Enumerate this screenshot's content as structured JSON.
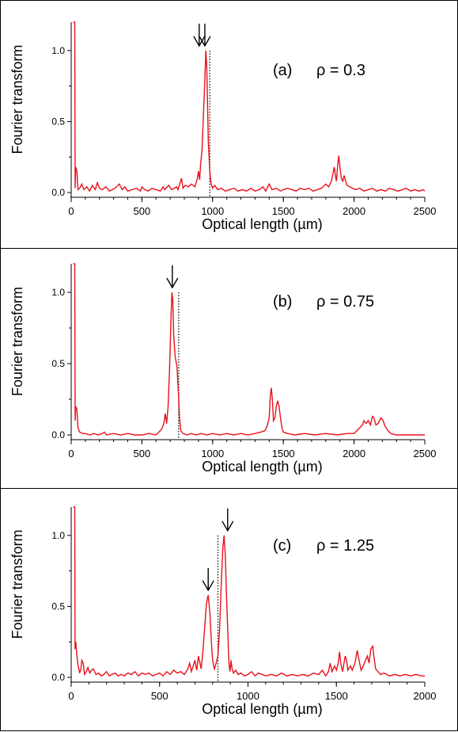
{
  "chart_data": [
    {
      "type": "line",
      "panel_label": "(a)",
      "annotation": "ρ = 0.3",
      "xlabel": "Optical length (µm)",
      "ylabel": "Fourier transform",
      "xlim": [
        0,
        2500
      ],
      "ylim": [
        0,
        1.2
      ],
      "xticks": [
        0,
        500,
        1000,
        1500,
        2000,
        2500
      ],
      "yticks": [
        "0.0",
        "0.5",
        "1.0"
      ],
      "color": "#e8111b",
      "dotted_line_x": 980,
      "arrows_x": [
        905,
        945
      ],
      "points": [
        [
          15,
          1.2
        ],
        [
          25,
          1.2
        ],
        [
          28,
          0.03
        ],
        [
          32,
          0.18
        ],
        [
          40,
          0.15
        ],
        [
          48,
          0.02
        ],
        [
          60,
          0.03
        ],
        [
          75,
          0.06
        ],
        [
          90,
          0.02
        ],
        [
          110,
          0.04
        ],
        [
          130,
          0.01
        ],
        [
          150,
          0.05
        ],
        [
          170,
          0.02
        ],
        [
          185,
          0.07
        ],
        [
          200,
          0.03
        ],
        [
          220,
          0.02
        ],
        [
          245,
          0.04
        ],
        [
          270,
          0.01
        ],
        [
          290,
          0.02
        ],
        [
          310,
          0.03
        ],
        [
          340,
          0.06
        ],
        [
          360,
          0.02
        ],
        [
          380,
          0.04
        ],
        [
          400,
          0.01
        ],
        [
          430,
          0.02
        ],
        [
          460,
          0.03
        ],
        [
          490,
          0.01
        ],
        [
          500,
          0.04
        ],
        [
          520,
          0.02
        ],
        [
          545,
          0.01
        ],
        [
          570,
          0.03
        ],
        [
          600,
          0.02
        ],
        [
          630,
          0.01
        ],
        [
          650,
          0.04
        ],
        [
          660,
          0.02
        ],
        [
          690,
          0.05
        ],
        [
          710,
          0.02
        ],
        [
          730,
          0.03
        ],
        [
          745,
          0.04
        ],
        [
          755,
          0.02
        ],
        [
          770,
          0.07
        ],
        [
          780,
          0.1
        ],
        [
          790,
          0.03
        ],
        [
          805,
          0.05
        ],
        [
          830,
          0.04
        ],
        [
          850,
          0.06
        ],
        [
          875,
          0.04
        ],
        [
          890,
          0.09
        ],
        [
          900,
          0.15
        ],
        [
          908,
          0.09
        ],
        [
          915,
          0.2
        ],
        [
          925,
          0.3
        ],
        [
          935,
          0.55
        ],
        [
          945,
          0.8
        ],
        [
          952,
          1.0
        ],
        [
          958,
          0.9
        ],
        [
          964,
          0.62
        ],
        [
          970,
          0.35
        ],
        [
          980,
          0.15
        ],
        [
          990,
          0.06
        ],
        [
          1000,
          0.03
        ],
        [
          1015,
          0.05
        ],
        [
          1035,
          0.02
        ],
        [
          1060,
          0.03
        ],
        [
          1090,
          0.01
        ],
        [
          1120,
          0.02
        ],
        [
          1150,
          0.03
        ],
        [
          1180,
          0.01
        ],
        [
          1210,
          0.02
        ],
        [
          1240,
          0.01
        ],
        [
          1270,
          0.03
        ],
        [
          1300,
          0.01
        ],
        [
          1330,
          0.02
        ],
        [
          1355,
          0.04
        ],
        [
          1375,
          0.01
        ],
        [
          1400,
          0.06
        ],
        [
          1420,
          0.02
        ],
        [
          1450,
          0.03
        ],
        [
          1480,
          0.01
        ],
        [
          1500,
          0.02
        ],
        [
          1530,
          0.03
        ],
        [
          1560,
          0.02
        ],
        [
          1590,
          0.01
        ],
        [
          1620,
          0.03
        ],
        [
          1650,
          0.02
        ],
        [
          1680,
          0.03
        ],
        [
          1710,
          0.01
        ],
        [
          1740,
          0.02
        ],
        [
          1770,
          0.03
        ],
        [
          1800,
          0.06
        ],
        [
          1820,
          0.04
        ],
        [
          1840,
          0.08
        ],
        [
          1860,
          0.18
        ],
        [
          1868,
          0.12
        ],
        [
          1875,
          0.08
        ],
        [
          1885,
          0.2
        ],
        [
          1892,
          0.26
        ],
        [
          1900,
          0.18
        ],
        [
          1910,
          0.1
        ],
        [
          1920,
          0.08
        ],
        [
          1930,
          0.12
        ],
        [
          1940,
          0.08
        ],
        [
          1950,
          0.05
        ],
        [
          1970,
          0.04
        ],
        [
          1990,
          0.03
        ],
        [
          2010,
          0.02
        ],
        [
          2040,
          0.03
        ],
        [
          2070,
          0.01
        ],
        [
          2100,
          0.02
        ],
        [
          2130,
          0.03
        ],
        [
          2160,
          0.01
        ],
        [
          2190,
          0.02
        ],
        [
          2220,
          0.01
        ],
        [
          2250,
          0.03
        ],
        [
          2280,
          0.02
        ],
        [
          2310,
          0.01
        ],
        [
          2340,
          0.02
        ],
        [
          2370,
          0.03
        ],
        [
          2400,
          0.01
        ],
        [
          2430,
          0.02
        ],
        [
          2460,
          0.01
        ],
        [
          2490,
          0.02
        ],
        [
          2500,
          0.01
        ]
      ]
    },
    {
      "type": "line",
      "panel_label": "(b)",
      "annotation": "ρ = 0.75",
      "xlabel": "Optical length (µm)",
      "ylabel": "Fourier transform",
      "xlim": [
        0,
        2500
      ],
      "ylim": [
        0,
        1.2
      ],
      "xticks": [
        0,
        500,
        1000,
        1500,
        2000,
        2500
      ],
      "yticks": [
        "0.0",
        "0.5",
        "1.0"
      ],
      "color": "#e8111b",
      "dotted_line_x": 760,
      "arrows_x": [
        715
      ],
      "points": [
        [
          15,
          1.2
        ],
        [
          25,
          1.2
        ],
        [
          28,
          0.1
        ],
        [
          32,
          0.2
        ],
        [
          40,
          0.18
        ],
        [
          48,
          0.05
        ],
        [
          60,
          0.02
        ],
        [
          80,
          0.01
        ],
        [
          100,
          0.01
        ],
        [
          130,
          0.0
        ],
        [
          160,
          0.01
        ],
        [
          190,
          0.0
        ],
        [
          220,
          0.01
        ],
        [
          235,
          0.02
        ],
        [
          250,
          0.0
        ],
        [
          300,
          0.01
        ],
        [
          350,
          0.0
        ],
        [
          400,
          0.01
        ],
        [
          450,
          0.0
        ],
        [
          500,
          0.0
        ],
        [
          550,
          0.01
        ],
        [
          600,
          0.0
        ],
        [
          620,
          0.02
        ],
        [
          640,
          0.04
        ],
        [
          655,
          0.08
        ],
        [
          665,
          0.15
        ],
        [
          675,
          0.08
        ],
        [
          685,
          0.2
        ],
        [
          695,
          0.45
        ],
        [
          705,
          0.8
        ],
        [
          712,
          1.0
        ],
        [
          718,
          0.95
        ],
        [
          725,
          0.7
        ],
        [
          735,
          0.55
        ],
        [
          748,
          0.48
        ],
        [
          758,
          0.3
        ],
        [
          766,
          0.12
        ],
        [
          775,
          0.03
        ],
        [
          790,
          0.01
        ],
        [
          820,
          0.0
        ],
        [
          850,
          0.01
        ],
        [
          880,
          0.0
        ],
        [
          920,
          0.01
        ],
        [
          960,
          0.0
        ],
        [
          1000,
          0.01
        ],
        [
          1050,
          0.0
        ],
        [
          1100,
          0.01
        ],
        [
          1150,
          0.0
        ],
        [
          1200,
          0.01
        ],
        [
          1250,
          0.0
        ],
        [
          1300,
          0.01
        ],
        [
          1340,
          0.02
        ],
        [
          1370,
          0.03
        ],
        [
          1385,
          0.06
        ],
        [
          1400,
          0.12
        ],
        [
          1408,
          0.28
        ],
        [
          1415,
          0.33
        ],
        [
          1422,
          0.25
        ],
        [
          1430,
          0.1
        ],
        [
          1440,
          0.12
        ],
        [
          1450,
          0.2
        ],
        [
          1460,
          0.24
        ],
        [
          1470,
          0.2
        ],
        [
          1480,
          0.12
        ],
        [
          1490,
          0.05
        ],
        [
          1500,
          0.02
        ],
        [
          1530,
          0.01
        ],
        [
          1580,
          0.0
        ],
        [
          1650,
          0.01
        ],
        [
          1720,
          0.0
        ],
        [
          1800,
          0.01
        ],
        [
          1880,
          0.0
        ],
        [
          1950,
          0.01
        ],
        [
          2000,
          0.01
        ],
        [
          2020,
          0.03
        ],
        [
          2040,
          0.05
        ],
        [
          2060,
          0.07
        ],
        [
          2070,
          0.1
        ],
        [
          2085,
          0.08
        ],
        [
          2100,
          0.1
        ],
        [
          2115,
          0.07
        ],
        [
          2130,
          0.13
        ],
        [
          2140,
          0.12
        ],
        [
          2155,
          0.07
        ],
        [
          2170,
          0.08
        ],
        [
          2190,
          0.12
        ],
        [
          2205,
          0.1
        ],
        [
          2220,
          0.06
        ],
        [
          2240,
          0.03
        ],
        [
          2260,
          0.01
        ],
        [
          2300,
          0.0
        ],
        [
          2400,
          0.0
        ],
        [
          2500,
          0.0
        ]
      ]
    },
    {
      "type": "line",
      "panel_label": "(c)",
      "annotation": "ρ = 1.25",
      "xlabel": "Optical length (µm)",
      "ylabel": "Fourier transform",
      "xlim": [
        0,
        2000
      ],
      "ylim": [
        0,
        1.2
      ],
      "xticks": [
        0,
        500,
        1000,
        1500,
        2000
      ],
      "yticks": [
        "0.0",
        "0.5",
        "1.0"
      ],
      "color": "#e8111b",
      "dotted_line_x": 830,
      "arrows_x": [
        775,
        885
      ],
      "points": [
        [
          12,
          1.2
        ],
        [
          20,
          1.2
        ],
        [
          22,
          0.2
        ],
        [
          26,
          0.25
        ],
        [
          32,
          0.15
        ],
        [
          40,
          0.08
        ],
        [
          48,
          0.03
        ],
        [
          55,
          0.06
        ],
        [
          60,
          0.12
        ],
        [
          68,
          0.1
        ],
        [
          75,
          0.02
        ],
        [
          85,
          0.04
        ],
        [
          95,
          0.07
        ],
        [
          105,
          0.03
        ],
        [
          115,
          0.05
        ],
        [
          125,
          0.06
        ],
        [
          140,
          0.02
        ],
        [
          155,
          0.03
        ],
        [
          170,
          0.01
        ],
        [
          185,
          0.02
        ],
        [
          200,
          0.04
        ],
        [
          215,
          0.01
        ],
        [
          230,
          0.02
        ],
        [
          250,
          0.03
        ],
        [
          265,
          0.01
        ],
        [
          280,
          0.02
        ],
        [
          300,
          0.01
        ],
        [
          320,
          0.03
        ],
        [
          340,
          0.02
        ],
        [
          360,
          0.04
        ],
        [
          380,
          0.01
        ],
        [
          400,
          0.03
        ],
        [
          420,
          0.02
        ],
        [
          440,
          0.03
        ],
        [
          460,
          0.01
        ],
        [
          480,
          0.02
        ],
        [
          500,
          0.03
        ],
        [
          520,
          0.01
        ],
        [
          540,
          0.04
        ],
        [
          560,
          0.02
        ],
        [
          580,
          0.05
        ],
        [
          600,
          0.03
        ],
        [
          620,
          0.04
        ],
        [
          640,
          0.02
        ],
        [
          660,
          0.06
        ],
        [
          670,
          0.1
        ],
        [
          680,
          0.04
        ],
        [
          690,
          0.08
        ],
        [
          700,
          0.12
        ],
        [
          710,
          0.05
        ],
        [
          720,
          0.15
        ],
        [
          735,
          0.06
        ],
        [
          745,
          0.18
        ],
        [
          755,
          0.35
        ],
        [
          765,
          0.52
        ],
        [
          775,
          0.58
        ],
        [
          785,
          0.45
        ],
        [
          793,
          0.25
        ],
        [
          800,
          0.12
        ],
        [
          810,
          0.06
        ],
        [
          820,
          0.1
        ],
        [
          830,
          0.15
        ],
        [
          840,
          0.35
        ],
        [
          850,
          0.7
        ],
        [
          858,
          0.92
        ],
        [
          865,
          1.0
        ],
        [
          872,
          0.85
        ],
        [
          878,
          0.6
        ],
        [
          885,
          0.35
        ],
        [
          892,
          0.1
        ],
        [
          898,
          0.04
        ],
        [
          904,
          0.12
        ],
        [
          910,
          0.06
        ],
        [
          918,
          0.03
        ],
        [
          930,
          0.05
        ],
        [
          945,
          0.02
        ],
        [
          960,
          0.03
        ],
        [
          980,
          0.01
        ],
        [
          1000,
          0.02
        ],
        [
          1020,
          0.04
        ],
        [
          1040,
          0.01
        ],
        [
          1060,
          0.03
        ],
        [
          1080,
          0.02
        ],
        [
          1100,
          0.01
        ],
        [
          1130,
          0.02
        ],
        [
          1160,
          0.01
        ],
        [
          1190,
          0.03
        ],
        [
          1220,
          0.01
        ],
        [
          1250,
          0.02
        ],
        [
          1280,
          0.01
        ],
        [
          1310,
          0.02
        ],
        [
          1340,
          0.01
        ],
        [
          1370,
          0.03
        ],
        [
          1400,
          0.02
        ],
        [
          1420,
          0.05
        ],
        [
          1430,
          0.03
        ],
        [
          1440,
          0.01
        ],
        [
          1455,
          0.04
        ],
        [
          1465,
          0.1
        ],
        [
          1475,
          0.04
        ],
        [
          1490,
          0.08
        ],
        [
          1500,
          0.05
        ],
        [
          1510,
          0.1
        ],
        [
          1518,
          0.18
        ],
        [
          1525,
          0.1
        ],
        [
          1535,
          0.04
        ],
        [
          1550,
          0.15
        ],
        [
          1558,
          0.12
        ],
        [
          1565,
          0.05
        ],
        [
          1580,
          0.08
        ],
        [
          1590,
          0.05
        ],
        [
          1605,
          0.1
        ],
        [
          1618,
          0.19
        ],
        [
          1628,
          0.12
        ],
        [
          1640,
          0.05
        ],
        [
          1652,
          0.08
        ],
        [
          1665,
          0.12
        ],
        [
          1675,
          0.15
        ],
        [
          1685,
          0.1
        ],
        [
          1695,
          0.2
        ],
        [
          1705,
          0.22
        ],
        [
          1712,
          0.15
        ],
        [
          1722,
          0.06
        ],
        [
          1735,
          0.04
        ],
        [
          1750,
          0.02
        ],
        [
          1770,
          0.03
        ],
        [
          1800,
          0.01
        ],
        [
          1830,
          0.02
        ],
        [
          1860,
          0.01
        ],
        [
          1890,
          0.02
        ],
        [
          1920,
          0.01
        ],
        [
          1950,
          0.02
        ],
        [
          1980,
          0.01
        ],
        [
          2000,
          0.01
        ]
      ]
    }
  ]
}
